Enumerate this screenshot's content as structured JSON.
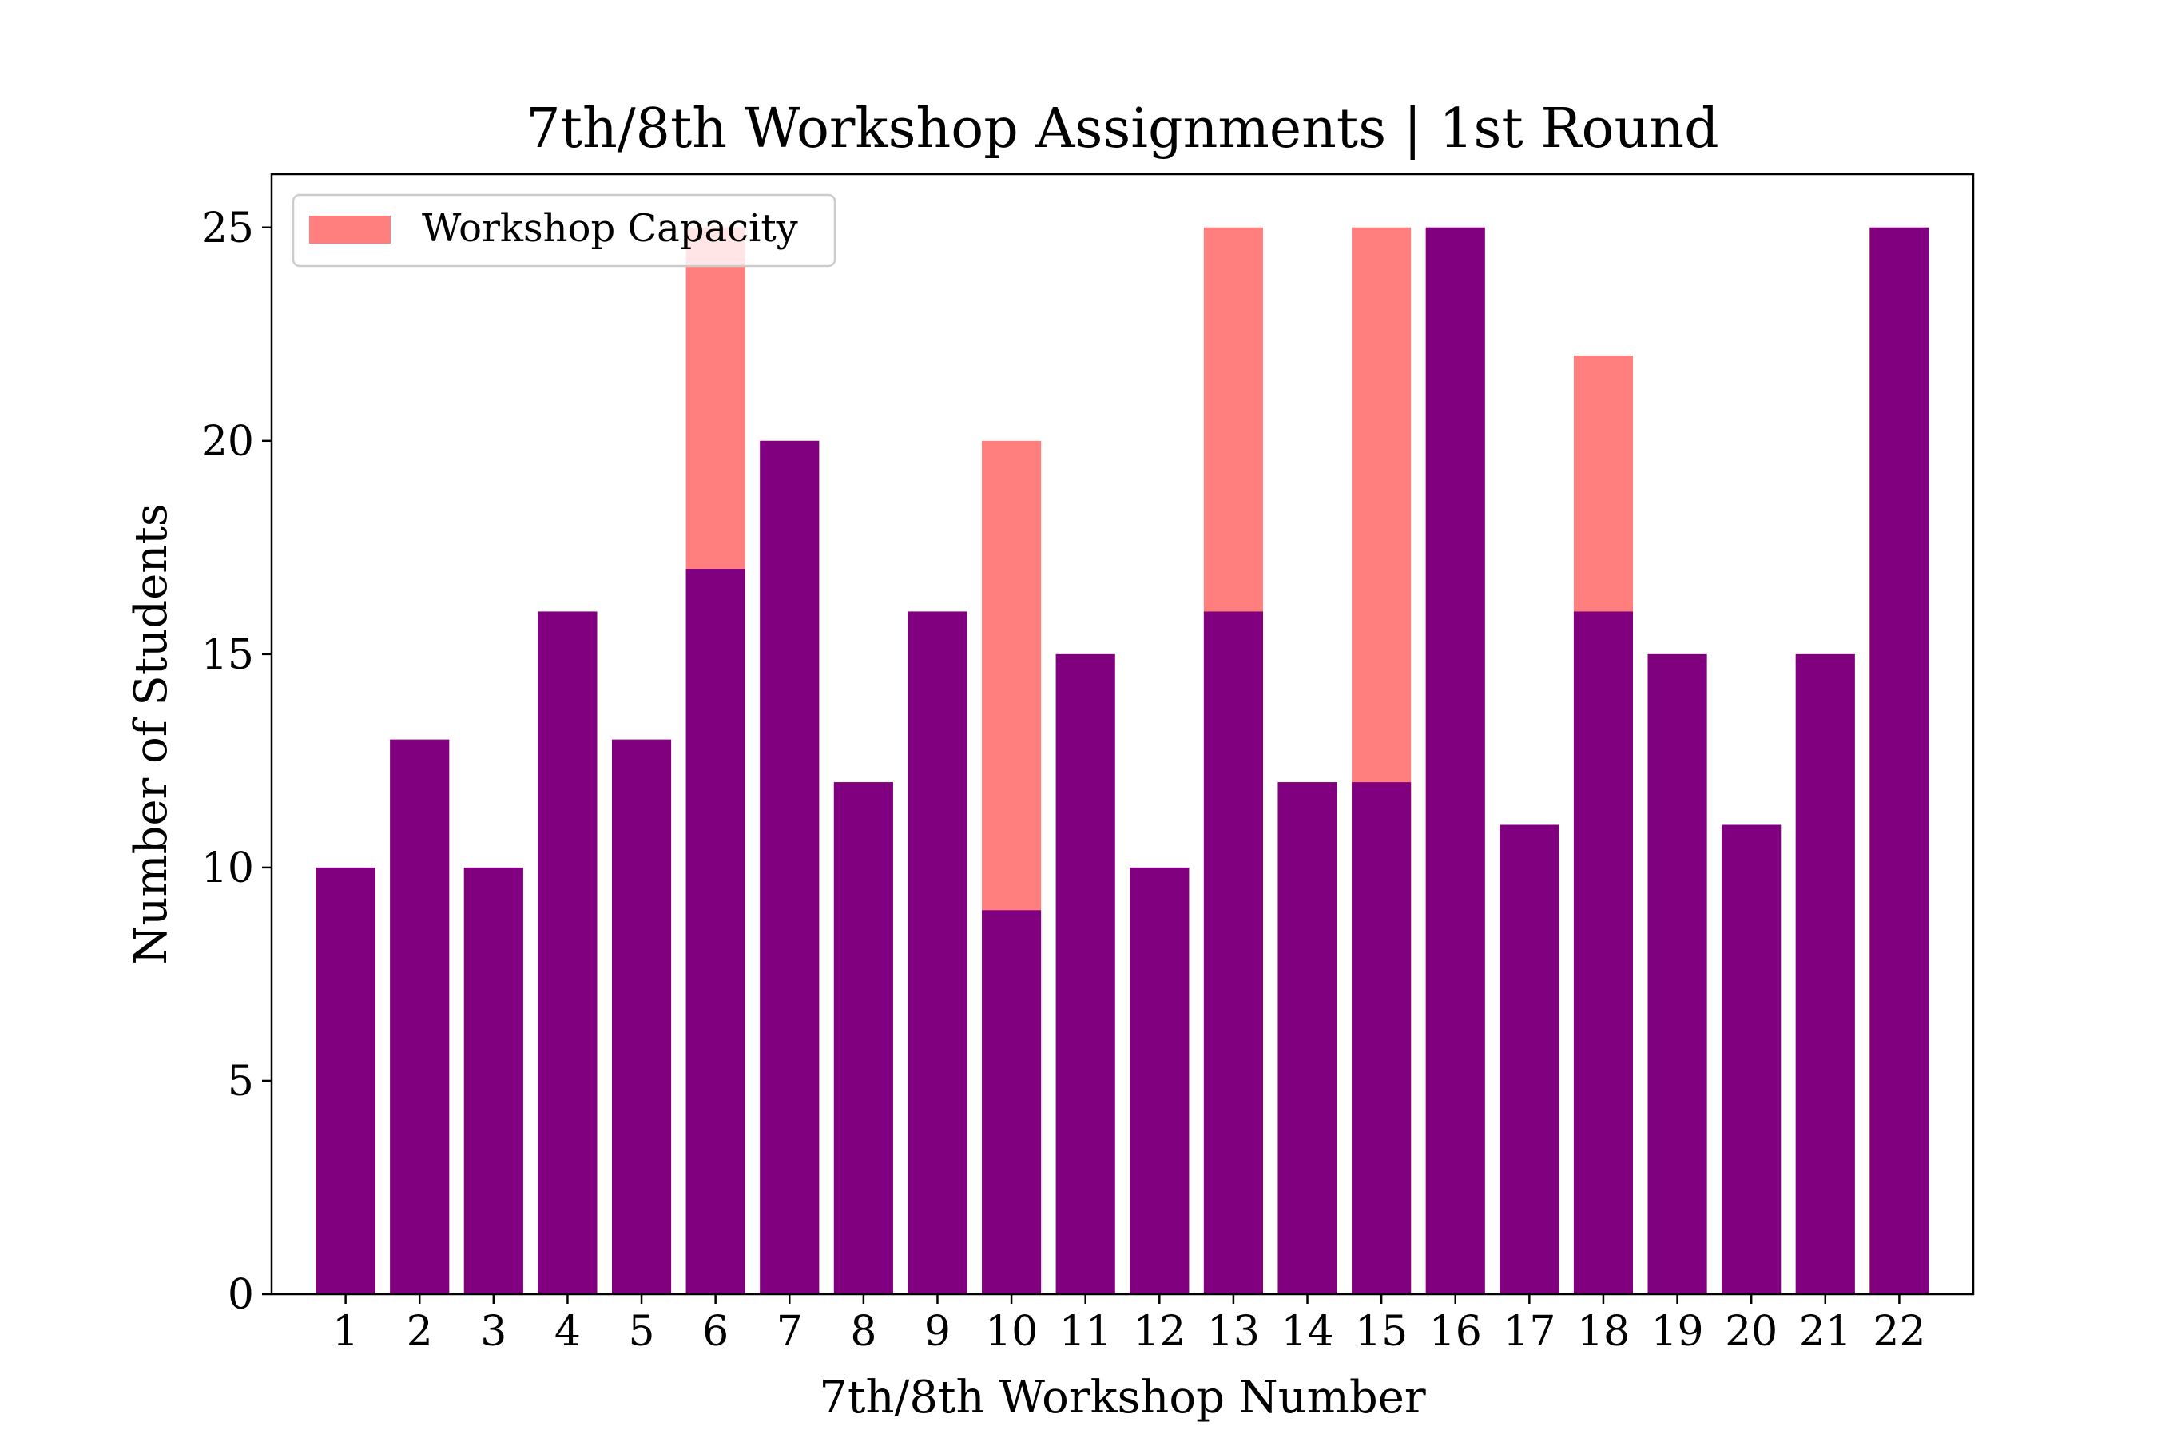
{
  "chart_data": {
    "type": "bar",
    "title": "7th/8th Workshop Assignments | 1st Round",
    "xlabel": "7th/8th Workshop Number",
    "ylabel": "Number of Students",
    "categories": [
      "1",
      "2",
      "3",
      "4",
      "5",
      "6",
      "7",
      "8",
      "9",
      "10",
      "11",
      "12",
      "13",
      "14",
      "15",
      "16",
      "17",
      "18",
      "19",
      "20",
      "21",
      "22"
    ],
    "ylim": [
      0,
      26.25
    ],
    "yticks": [
      0,
      5,
      10,
      15,
      20,
      25
    ],
    "grid": false,
    "legend_position": "top-left",
    "series": [
      {
        "name": "Workshop Capacity",
        "color": "#ff7f7f",
        "values": [
          10,
          13,
          10,
          16,
          13,
          25,
          20,
          12,
          16,
          20,
          15,
          10,
          25,
          12,
          25,
          25,
          11,
          22,
          15,
          11,
          15,
          25
        ]
      },
      {
        "color": "#800080",
        "values": [
          10,
          13,
          10,
          16,
          13,
          17,
          20,
          12,
          16,
          9,
          15,
          10,
          16,
          12,
          12,
          25,
          11,
          16,
          15,
          11,
          15,
          25
        ]
      }
    ]
  }
}
